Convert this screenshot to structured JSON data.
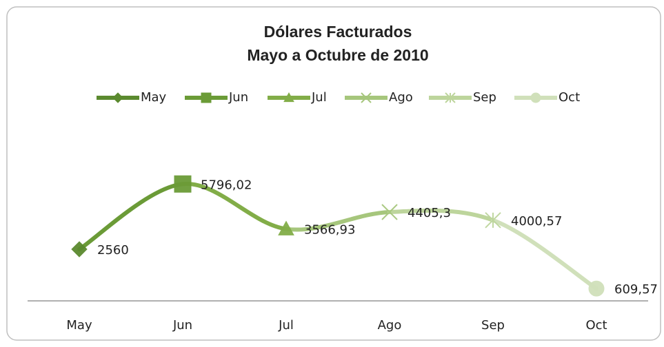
{
  "chart_data": {
    "type": "line",
    "title": "Dólares Facturados",
    "subtitle": "Mayo a Octubre de 2010",
    "categories": [
      "May",
      "Jun",
      "Jul",
      "Ago",
      "Sep",
      "Oct"
    ],
    "values": [
      2560,
      5796.02,
      3566.93,
      4405.3,
      4000.57,
      609.57
    ],
    "value_labels": [
      "2560",
      "5796,02",
      "3566,93",
      "4405,3",
      "4000,57",
      "609,57"
    ],
    "colors": [
      "#5b8a2f",
      "#6b9b37",
      "#82ad48",
      "#a6c67c",
      "#bdd59c",
      "#d0e0ba"
    ],
    "markers": [
      "diamond",
      "square",
      "triangle",
      "x",
      "star",
      "circle"
    ],
    "ylim": [
      0,
      7000
    ],
    "smooth": true,
    "legend_position": "top"
  }
}
